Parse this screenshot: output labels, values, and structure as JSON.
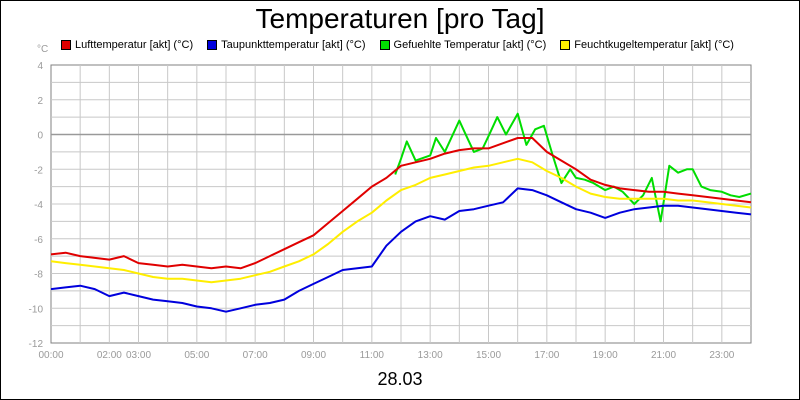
{
  "chart_data": {
    "type": "line",
    "title": "Temperaturen [pro Tag]",
    "ylabel": "°C",
    "xlabel": "28.03",
    "ylim": [
      -12,
      4
    ],
    "xlim": [
      0,
      24
    ],
    "y_ticks": [
      "4",
      "2",
      "0",
      "-2",
      "-4",
      "-6",
      "-8",
      "-10",
      "-12"
    ],
    "x_tick_labels": [
      {
        "h": 0,
        "label": "00:00"
      },
      {
        "h": 2,
        "label": "02:00"
      },
      {
        "h": 3,
        "label": "03:00"
      },
      {
        "h": 5,
        "label": "05:00"
      },
      {
        "h": 7,
        "label": "07:00"
      },
      {
        "h": 9,
        "label": "09:00"
      },
      {
        "h": 11,
        "label": "11:00"
      },
      {
        "h": 13,
        "label": "13:00"
      },
      {
        "h": 15,
        "label": "15:00"
      },
      {
        "h": 17,
        "label": "17:00"
      },
      {
        "h": 19,
        "label": "19:00"
      },
      {
        "h": 21,
        "label": "21:00"
      },
      {
        "h": 23,
        "label": "23:00"
      }
    ],
    "grid": true,
    "legend_position": "top",
    "series": [
      {
        "name": "Lufttemperatur [akt] (°C)",
        "color": "#e00000",
        "points": [
          [
            0,
            -6.9
          ],
          [
            0.5,
            -6.8
          ],
          [
            1,
            -7.0
          ],
          [
            1.5,
            -7.1
          ],
          [
            2,
            -7.2
          ],
          [
            2.5,
            -7.0
          ],
          [
            3,
            -7.4
          ],
          [
            3.5,
            -7.5
          ],
          [
            4,
            -7.6
          ],
          [
            4.5,
            -7.5
          ],
          [
            5,
            -7.6
          ],
          [
            5.5,
            -7.7
          ],
          [
            6,
            -7.6
          ],
          [
            6.5,
            -7.7
          ],
          [
            7,
            -7.4
          ],
          [
            7.5,
            -7.0
          ],
          [
            8,
            -6.6
          ],
          [
            8.5,
            -6.2
          ],
          [
            9,
            -5.8
          ],
          [
            9.5,
            -5.1
          ],
          [
            10,
            -4.4
          ],
          [
            10.5,
            -3.7
          ],
          [
            11,
            -3.0
          ],
          [
            11.5,
            -2.5
          ],
          [
            12,
            -1.8
          ],
          [
            12.5,
            -1.6
          ],
          [
            13,
            -1.4
          ],
          [
            13.5,
            -1.1
          ],
          [
            14,
            -0.9
          ],
          [
            14.5,
            -0.8
          ],
          [
            15,
            -0.8
          ],
          [
            15.5,
            -0.5
          ],
          [
            16,
            -0.2
          ],
          [
            16.5,
            -0.2
          ],
          [
            17,
            -1.0
          ],
          [
            17.5,
            -1.5
          ],
          [
            18,
            -2.0
          ],
          [
            18.5,
            -2.6
          ],
          [
            19,
            -2.9
          ],
          [
            19.5,
            -3.1
          ],
          [
            20,
            -3.2
          ],
          [
            20.5,
            -3.3
          ],
          [
            21,
            -3.3
          ],
          [
            21.5,
            -3.4
          ],
          [
            22,
            -3.5
          ],
          [
            22.5,
            -3.6
          ],
          [
            23,
            -3.7
          ],
          [
            23.5,
            -3.8
          ],
          [
            24,
            -3.9
          ]
        ]
      },
      {
        "name": "Taupunkttemperatur [akt] (°C)",
        "color": "#0000dd",
        "points": [
          [
            0,
            -8.9
          ],
          [
            0.5,
            -8.8
          ],
          [
            1,
            -8.7
          ],
          [
            1.5,
            -8.9
          ],
          [
            2,
            -9.3
          ],
          [
            2.5,
            -9.1
          ],
          [
            3,
            -9.3
          ],
          [
            3.5,
            -9.5
          ],
          [
            4,
            -9.6
          ],
          [
            4.5,
            -9.7
          ],
          [
            5,
            -9.9
          ],
          [
            5.5,
            -10.0
          ],
          [
            6,
            -10.2
          ],
          [
            6.5,
            -10.0
          ],
          [
            7,
            -9.8
          ],
          [
            7.5,
            -9.7
          ],
          [
            8,
            -9.5
          ],
          [
            8.5,
            -9.0
          ],
          [
            9,
            -8.6
          ],
          [
            9.5,
            -8.2
          ],
          [
            10,
            -7.8
          ],
          [
            10.5,
            -7.7
          ],
          [
            11,
            -7.6
          ],
          [
            11.5,
            -6.4
          ],
          [
            12,
            -5.6
          ],
          [
            12.5,
            -5.0
          ],
          [
            13,
            -4.7
          ],
          [
            13.5,
            -4.9
          ],
          [
            14,
            -4.4
          ],
          [
            14.5,
            -4.3
          ],
          [
            15,
            -4.1
          ],
          [
            15.5,
            -3.9
          ],
          [
            16,
            -3.1
          ],
          [
            16.5,
            -3.2
          ],
          [
            17,
            -3.5
          ],
          [
            17.5,
            -3.9
          ],
          [
            18,
            -4.3
          ],
          [
            18.5,
            -4.5
          ],
          [
            19,
            -4.8
          ],
          [
            19.5,
            -4.5
          ],
          [
            20,
            -4.3
          ],
          [
            20.5,
            -4.2
          ],
          [
            21,
            -4.1
          ],
          [
            21.5,
            -4.1
          ],
          [
            22,
            -4.2
          ],
          [
            22.5,
            -4.3
          ],
          [
            23,
            -4.4
          ],
          [
            23.5,
            -4.5
          ],
          [
            24,
            -4.6
          ]
        ]
      },
      {
        "name": "Gefuehlte Temperatur [akt] (°C)",
        "color": "#00dd00",
        "points": [
          [
            11.8,
            -2.3
          ],
          [
            12,
            -1.4
          ],
          [
            12.2,
            -0.4
          ],
          [
            12.5,
            -1.5
          ],
          [
            13,
            -1.2
          ],
          [
            13.2,
            -0.2
          ],
          [
            13.5,
            -1.0
          ],
          [
            14,
            0.8
          ],
          [
            14.3,
            -0.3
          ],
          [
            14.5,
            -1.0
          ],
          [
            14.8,
            -0.8
          ],
          [
            15,
            -0.1
          ],
          [
            15.3,
            1.0
          ],
          [
            15.6,
            0.0
          ],
          [
            16,
            1.2
          ],
          [
            16.3,
            -0.6
          ],
          [
            16.6,
            0.3
          ],
          [
            16.9,
            0.5
          ],
          [
            17.2,
            -1.2
          ],
          [
            17.5,
            -2.8
          ],
          [
            17.8,
            -2.0
          ],
          [
            18,
            -2.5
          ],
          [
            18.3,
            -2.6
          ],
          [
            18.6,
            -2.8
          ],
          [
            19,
            -3.2
          ],
          [
            19.3,
            -3.0
          ],
          [
            19.6,
            -3.3
          ],
          [
            20,
            -4.0
          ],
          [
            20.3,
            -3.5
          ],
          [
            20.6,
            -2.5
          ],
          [
            20.9,
            -5.0
          ],
          [
            21.2,
            -1.8
          ],
          [
            21.5,
            -2.2
          ],
          [
            21.8,
            -2.0
          ],
          [
            22,
            -2.0
          ],
          [
            22.3,
            -3.0
          ],
          [
            22.6,
            -3.2
          ],
          [
            23,
            -3.3
          ],
          [
            23.3,
            -3.5
          ],
          [
            23.6,
            -3.6
          ],
          [
            24,
            -3.4
          ]
        ]
      },
      {
        "name": "Feuchtkugeltemperatur [akt] (°C)",
        "color": "#ffee00",
        "points": [
          [
            0,
            -7.3
          ],
          [
            0.5,
            -7.4
          ],
          [
            1,
            -7.5
          ],
          [
            1.5,
            -7.6
          ],
          [
            2,
            -7.7
          ],
          [
            2.5,
            -7.8
          ],
          [
            3,
            -8.0
          ],
          [
            3.5,
            -8.2
          ],
          [
            4,
            -8.3
          ],
          [
            4.5,
            -8.3
          ],
          [
            5,
            -8.4
          ],
          [
            5.5,
            -8.5
          ],
          [
            6,
            -8.4
          ],
          [
            6.5,
            -8.3
          ],
          [
            7,
            -8.1
          ],
          [
            7.5,
            -7.9
          ],
          [
            8,
            -7.6
          ],
          [
            8.5,
            -7.3
          ],
          [
            9,
            -6.9
          ],
          [
            9.5,
            -6.3
          ],
          [
            10,
            -5.6
          ],
          [
            10.5,
            -5.0
          ],
          [
            11,
            -4.5
          ],
          [
            11.5,
            -3.8
          ],
          [
            12,
            -3.2
          ],
          [
            12.5,
            -2.9
          ],
          [
            13,
            -2.5
          ],
          [
            13.5,
            -2.3
          ],
          [
            14,
            -2.1
          ],
          [
            14.5,
            -1.9
          ],
          [
            15,
            -1.8
          ],
          [
            15.5,
            -1.6
          ],
          [
            16,
            -1.4
          ],
          [
            16.5,
            -1.6
          ],
          [
            17,
            -2.1
          ],
          [
            17.5,
            -2.5
          ],
          [
            18,
            -3.0
          ],
          [
            18.5,
            -3.4
          ],
          [
            19,
            -3.6
          ],
          [
            19.5,
            -3.7
          ],
          [
            20,
            -3.7
          ],
          [
            20.5,
            -3.7
          ],
          [
            21,
            -3.7
          ],
          [
            21.5,
            -3.8
          ],
          [
            22,
            -3.8
          ],
          [
            22.5,
            -3.9
          ],
          [
            23,
            -4.0
          ],
          [
            23.5,
            -4.1
          ],
          [
            24,
            -4.2
          ]
        ]
      }
    ]
  }
}
